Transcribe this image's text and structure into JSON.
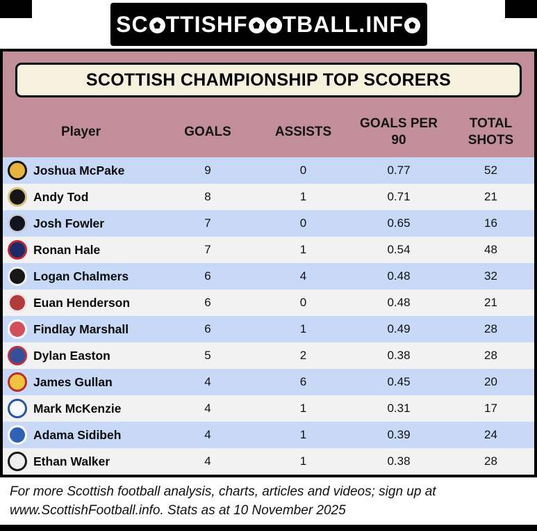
{
  "logo": {
    "text": "SCOTTISHFOOTBALL.INFO"
  },
  "chart_data": {
    "type": "table",
    "title": "SCOTTISH CHAMPIONSHIP TOP SCORERS",
    "columns": [
      "Player",
      "GOALS",
      "ASSISTS",
      "GOALS PER 90",
      "TOTAL SHOTS"
    ],
    "rows": [
      [
        "Joshua McPake",
        9,
        0,
        0.77,
        52
      ],
      [
        "Andy Tod",
        8,
        1,
        0.71,
        21
      ],
      [
        "Josh Fowler",
        7,
        0,
        0.65,
        16
      ],
      [
        "Ronan Hale",
        7,
        1,
        0.54,
        48
      ],
      [
        "Logan Chalmers",
        6,
        4,
        0.48,
        32
      ],
      [
        "Euan Henderson",
        6,
        0,
        0.48,
        21
      ],
      [
        "Findlay Marshall",
        6,
        1,
        0.49,
        28
      ],
      [
        "Dylan Easton",
        5,
        2,
        0.38,
        28
      ],
      [
        "James Gullan",
        4,
        6,
        0.45,
        20
      ],
      [
        "Mark McKenzie",
        4,
        1,
        0.31,
        17
      ],
      [
        "Adama Sidibeh",
        4,
        1,
        0.39,
        24
      ],
      [
        "Ethan Walker",
        4,
        1,
        0.38,
        28
      ]
    ],
    "legend": "none",
    "grid": "off"
  },
  "table": {
    "rows": [
      {
        "player": "Joshua McPake",
        "goals": "9",
        "assists": "0",
        "goals_per_90": "0.77",
        "total_shots": "52",
        "badge": {
          "icon": "club-badge-icon",
          "primary": "#e7b53c",
          "secondary": "#16120a"
        }
      },
      {
        "player": "Andy Tod",
        "goals": "8",
        "assists": "1",
        "goals_per_90": "0.71",
        "total_shots": "21",
        "badge": {
          "icon": "club-badge-icon",
          "primary": "#161616",
          "secondary": "#d9c27a"
        }
      },
      {
        "player": "Josh Fowler",
        "goals": "7",
        "assists": "0",
        "goals_per_90": "0.65",
        "total_shots": "16",
        "badge": {
          "icon": "club-badge-icon",
          "primary": "#12141f",
          "secondary": "#c7cdd9"
        }
      },
      {
        "player": "Ronan Hale",
        "goals": "7",
        "assists": "1",
        "goals_per_90": "0.54",
        "total_shots": "48",
        "badge": {
          "icon": "club-badge-icon",
          "primary": "#1c2a6a",
          "secondary": "#c22333"
        }
      },
      {
        "player": "Logan Chalmers",
        "goals": "6",
        "assists": "4",
        "goals_per_90": "0.48",
        "total_shots": "32",
        "badge": {
          "icon": "club-badge-icon",
          "primary": "#171717",
          "secondary": "#f0f0f0"
        }
      },
      {
        "player": "Euan Henderson",
        "goals": "6",
        "assists": "0",
        "goals_per_90": "0.48",
        "total_shots": "21",
        "badge": {
          "icon": "club-badge-icon",
          "primary": "#b13a3a",
          "secondary": "#f3e6e6"
        }
      },
      {
        "player": "Findlay Marshall",
        "goals": "6",
        "assists": "1",
        "goals_per_90": "0.49",
        "total_shots": "28",
        "badge": {
          "icon": "club-badge-icon",
          "primary": "#d44f5e",
          "secondary": "#ffffff"
        }
      },
      {
        "player": "Dylan Easton",
        "goals": "5",
        "assists": "2",
        "goals_per_90": "0.38",
        "total_shots": "28",
        "badge": {
          "icon": "club-badge-icon",
          "primary": "#31519b",
          "secondary": "#bf3040"
        }
      },
      {
        "player": "James Gullan",
        "goals": "4",
        "assists": "6",
        "goals_per_90": "0.45",
        "total_shots": "20",
        "badge": {
          "icon": "club-badge-icon",
          "primary": "#f1c23e",
          "secondary": "#bb2d2d"
        }
      },
      {
        "player": "Mark McKenzie",
        "goals": "4",
        "assists": "1",
        "goals_per_90": "0.31",
        "total_shots": "17",
        "badge": {
          "icon": "club-badge-icon",
          "primary": "#f6f9ff",
          "secondary": "#2a55a7"
        }
      },
      {
        "player": "Adama Sidibeh",
        "goals": "4",
        "assists": "1",
        "goals_per_90": "0.39",
        "total_shots": "24",
        "badge": {
          "icon": "club-badge-icon",
          "primary": "#2f62b4",
          "secondary": "#ffffff"
        }
      },
      {
        "player": "Ethan Walker",
        "goals": "4",
        "assists": "1",
        "goals_per_90": "0.38",
        "total_shots": "28",
        "badge": {
          "icon": "club-badge-icon",
          "primary": "#efefef",
          "secondary": "#1a1a1a"
        }
      }
    ]
  },
  "footer": {
    "text": "For more Scottish football analysis, charts, articles and videos; sign up at www.ScottishFootball.info. Stats as at 10 November 2025"
  },
  "theme": {
    "card_bg": "#c28e9a",
    "title_bg": "#f6f1dc",
    "row_blue": "#c7d9f6",
    "row_gray": "#f2f2f2",
    "bar_black": "#000000",
    "logo_bg": "#000000",
    "logo_text": "#ffffff"
  }
}
